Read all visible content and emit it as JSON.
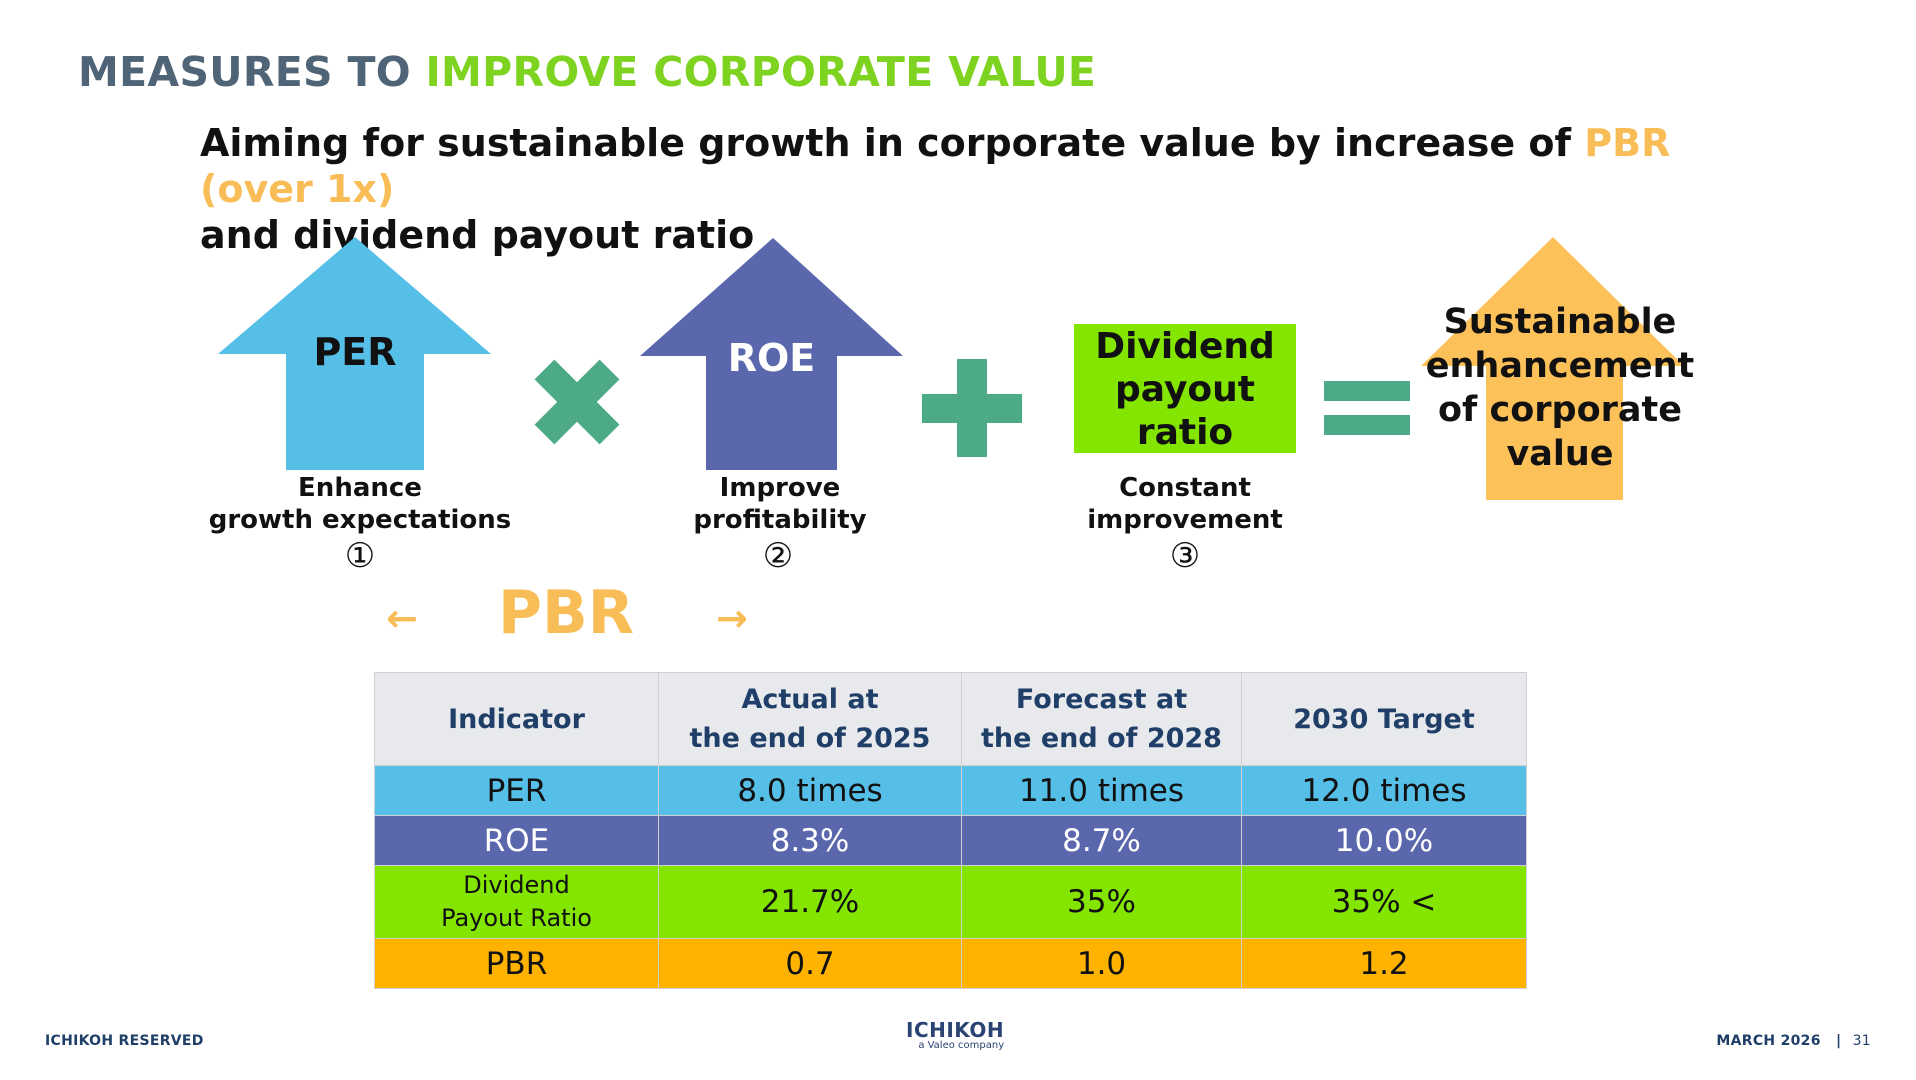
{
  "title": {
    "part1": "MEASURES TO",
    "part2": "IMPROVE CORPORATE VALUE"
  },
  "subtitle": {
    "line1_prefix": "Aiming for sustainable growth in corporate value by increase of",
    "line1_highlight": "PBR (over 1x)",
    "line2": "and dividend payout ratio"
  },
  "diagram": {
    "per": {
      "label": "PER",
      "caption1": "Enhance",
      "caption2": "growth expectations",
      "number": "①",
      "color": "#55bfe7"
    },
    "roe": {
      "label": "ROE",
      "caption1": "Improve",
      "caption2": "profitability",
      "number": "②",
      "color": "#5a67ad"
    },
    "dividend": {
      "line1": "Dividend",
      "line2": "payout",
      "line3": "ratio",
      "caption1": "Constant",
      "caption2": "improvement",
      "number": "③",
      "color": "#84e500"
    },
    "result": {
      "line1": "Sustainable",
      "line2": "enhancement",
      "line3": "of corporate",
      "line4": "value",
      "color": "#fcc158"
    },
    "operator_color": "#4daa87",
    "pbr_label": "PBR",
    "pbr_arrow_left": "←",
    "pbr_arrow_right": "→"
  },
  "table": {
    "headers": {
      "c0": "Indicator",
      "c1_l1": "Actual at",
      "c1_l2": "the end of 2025",
      "c2_l1": "Forecast at",
      "c2_l2": "the end of 2028",
      "c3": "2030 Target"
    },
    "rows": [
      {
        "name": "PER",
        "v1": "8.0 times",
        "v2": "11.0 times",
        "v3": "12.0 times"
      },
      {
        "name": "ROE",
        "v1": "8.3%",
        "v2": "8.7%",
        "v3": "10.0%"
      },
      {
        "name_l1": "Dividend",
        "name_l2": "Payout Ratio",
        "v1": "21.7%",
        "v2": "35%",
        "v3": "35% <"
      },
      {
        "name": "PBR",
        "v1": "0.7",
        "v2": "1.0",
        "v3": "1.2"
      }
    ]
  },
  "footer": {
    "left": "ICHIKOH RESERVED",
    "logo_main": "ICHIKOH",
    "logo_sub": "a Valeo company",
    "date": "MARCH 2026",
    "separator": "|",
    "page": "31"
  }
}
